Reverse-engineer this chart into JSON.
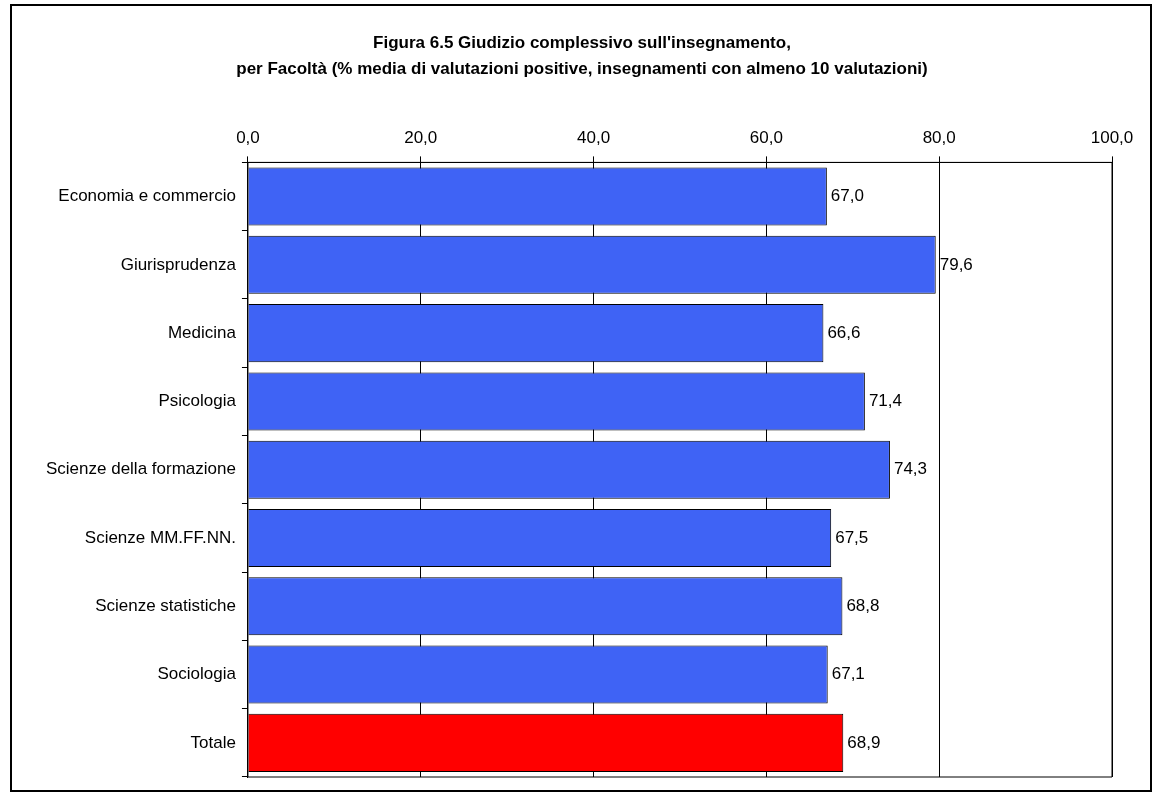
{
  "chart_data": {
    "type": "bar",
    "orientation": "horizontal",
    "title": "Figura 6.5 Giudizio complessivo sull'insegnamento,\nper Facoltà (% media di valutazioni positive, insegnamenti con almeno 10 valutazioni)",
    "categories": [
      "Economia e commercio",
      "Giurisprudenza",
      "Medicina",
      "Psicologia",
      "Scienze della formazione",
      "Scienze MM.FF.NN.",
      "Scienze statistiche",
      "Sociologia",
      "Totale"
    ],
    "values": [
      67.0,
      79.6,
      66.6,
      71.4,
      74.3,
      67.5,
      68.8,
      67.1,
      68.9
    ],
    "value_labels": [
      "67,0",
      "79,6",
      "66,6",
      "71,4",
      "74,3",
      "67,5",
      "68,8",
      "67,1",
      "68,9"
    ],
    "colors": [
      "#3f63f5",
      "#3f63f5",
      "#3f63f5",
      "#3f63f5",
      "#3f63f5",
      "#3f63f5",
      "#3f63f5",
      "#3f63f5",
      "#ff0000"
    ],
    "xlim": [
      0,
      100
    ],
    "xticks": [
      {
        "value": 0,
        "label": "0,0"
      },
      {
        "value": 20,
        "label": "20,0"
      },
      {
        "value": 40,
        "label": "40,0"
      },
      {
        "value": 60,
        "label": "60,0"
      },
      {
        "value": 80,
        "label": "80,0"
      },
      {
        "value": 100,
        "label": "100,0"
      }
    ],
    "grid": "x",
    "legend": false
  }
}
